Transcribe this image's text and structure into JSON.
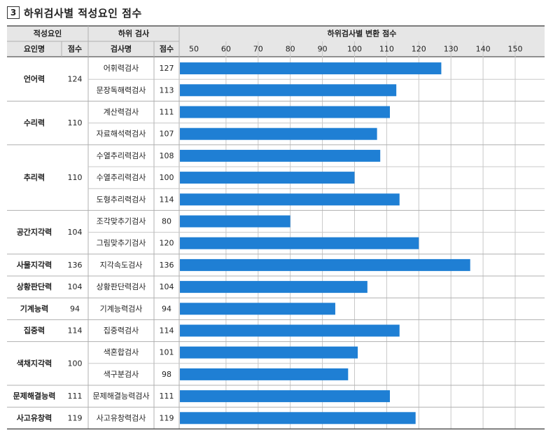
{
  "title_number": "3",
  "title": "하위검사별 적성요인 점수",
  "headers": {
    "factor_group": "적성요인",
    "subtest_group": "하위 검사",
    "chart_group": "하위검사별 변환 점수",
    "factor_name": "요인명",
    "factor_score": "점수",
    "subtest_name": "검사명",
    "subtest_score": "점수"
  },
  "colors": {
    "bar": "#1F7FD4",
    "header_bg": "#E6E6E6",
    "grid": "#C8C8C8",
    "line": "#B0B0B0"
  },
  "factors": [
    {
      "name": "언어력",
      "score": "124"
    },
    {
      "name": "수리력",
      "score": "110"
    },
    {
      "name": "추리력",
      "score": "110"
    },
    {
      "name": "공간지각력",
      "score": "104"
    },
    {
      "name": "사물지각력",
      "score": "136"
    },
    {
      "name": "상황판단력",
      "score": "104"
    },
    {
      "name": "기계능력",
      "score": "94"
    },
    {
      "name": "집중력",
      "score": "114"
    },
    {
      "name": "색채지각력",
      "score": "100"
    },
    {
      "name": "문제해결능력",
      "score": "111"
    },
    {
      "name": "사고유창력",
      "score": "119"
    }
  ],
  "chart_data": {
    "type": "bar",
    "orientation": "horizontal",
    "categories": [
      "어휘력검사",
      "문장독해력검사",
      "계산력검사",
      "자료해석력검사",
      "수열추리력검사",
      "수열추리력검사",
      "도형추리력검사",
      "조각맞추기검사",
      "그림맞추기검사",
      "지각속도검사",
      "상황판단력검사",
      "기계능력검사",
      "집중력검사",
      "색혼합검사",
      "색구분검사",
      "문제해결능력검사",
      "사고유창력검사"
    ],
    "factor_index": [
      0,
      0,
      1,
      1,
      2,
      2,
      2,
      3,
      3,
      4,
      5,
      6,
      7,
      8,
      8,
      9,
      10
    ],
    "values": [
      127,
      113,
      111,
      107,
      108,
      100,
      114,
      80,
      120,
      136,
      104,
      94,
      114,
      101,
      98,
      111,
      119
    ],
    "value_labels": [
      "127",
      "113",
      "111",
      "107",
      "108",
      "100",
      "114",
      "80",
      "120",
      "136",
      "104",
      "94",
      "114",
      "101",
      "98",
      "111",
      "119"
    ],
    "xlim": [
      45,
      157
    ],
    "xticks": [
      50,
      60,
      70,
      80,
      90,
      100,
      110,
      120,
      130,
      140,
      150
    ],
    "xtick_labels": [
      "50",
      "60",
      "70",
      "80",
      "90",
      "100",
      "110",
      "120",
      "130",
      "140",
      "150"
    ],
    "grid": true,
    "legend": "none"
  }
}
